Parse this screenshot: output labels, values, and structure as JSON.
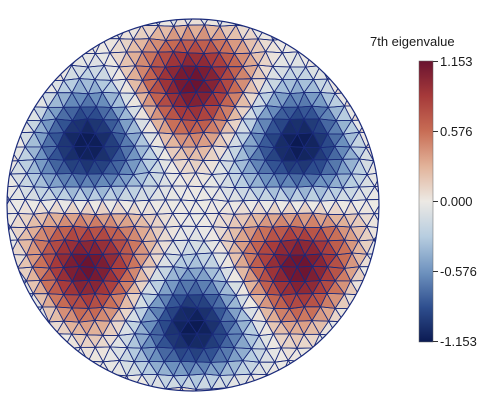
{
  "colorbar": {
    "title": "7th eigenvalue",
    "max_label": "1.153",
    "mid_high_label": "0.576",
    "zero_label": "0.000",
    "mid_low_label": "-0.576",
    "min_label": "-1.153",
    "range": [
      -1.153,
      1.153
    ],
    "colormap": [
      "#0b1a52",
      "#2f4f8f",
      "#6f93bf",
      "#b7cde0",
      "#ece9e4",
      "#e2b39a",
      "#c86d55",
      "#a63a3a",
      "#6a1330"
    ]
  },
  "mesh": {
    "edge_color": "#1a2a7a",
    "lobes": 6,
    "peak_value": 1.153
  }
}
